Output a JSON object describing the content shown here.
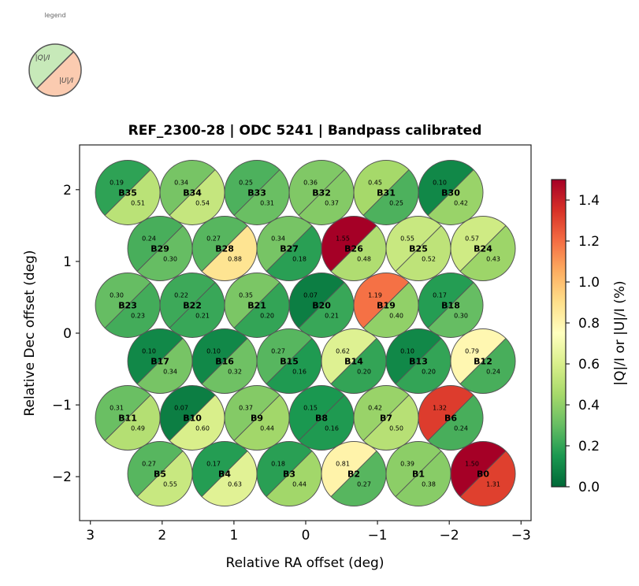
{
  "chart_data": {
    "type": "heatmap",
    "title": "REF_2300-28  |  ODC 5241  |  Bandpass calibrated",
    "xlabel": "Relative RA offset (deg)",
    "ylabel": "Relative Dec offset (deg)",
    "xlim": [
      3.15,
      -3.15
    ],
    "ylim": [
      -2.62,
      2.62
    ],
    "x_ticks": [
      3,
      2,
      1,
      0,
      -1,
      -2,
      -3
    ],
    "x_tick_labels": [
      "3",
      "2",
      "1",
      "0",
      "−1",
      "−2",
      "−3"
    ],
    "y_ticks": [
      2,
      1,
      0,
      -1,
      -2
    ],
    "y_tick_labels": [
      "2",
      "1",
      "0",
      "−1",
      "−2"
    ],
    "grid": false,
    "colorbar": {
      "label": "|Q|/I  or  |U|/I  (%)",
      "colormap": "RdYlGn_r",
      "vmin": 0.0,
      "vmax": 1.5,
      "ticks": [
        0.0,
        0.2,
        0.4,
        0.6,
        0.8,
        1.0,
        1.2,
        1.4
      ],
      "tick_labels": [
        "0.0",
        "0.2",
        "0.4",
        "0.6",
        "0.8",
        "1.0",
        "1.2",
        "1.4"
      ],
      "placement": "right"
    },
    "legend": {
      "title": "legend",
      "q_label": "|Q|/I",
      "u_label": "|U|/I",
      "q_color": "#c7e9b9",
      "u_color": "#fbcbb0",
      "placement": "top-left"
    },
    "beam_radius_deg": 0.45,
    "beams": [
      {
        "name": "B35",
        "x": 2.48,
        "y": 1.96,
        "q": 0.19,
        "u": 0.51
      },
      {
        "name": "B34",
        "x": 1.58,
        "y": 1.96,
        "q": 0.34,
        "u": 0.54
      },
      {
        "name": "B33",
        "x": 0.68,
        "y": 1.96,
        "q": 0.25,
        "u": 0.31
      },
      {
        "name": "B32",
        "x": -0.22,
        "y": 1.96,
        "q": 0.36,
        "u": 0.37
      },
      {
        "name": "B31",
        "x": -1.12,
        "y": 1.96,
        "q": 0.45,
        "u": 0.25
      },
      {
        "name": "B30",
        "x": -2.02,
        "y": 1.96,
        "q": 0.1,
        "u": 0.42
      },
      {
        "name": "B29",
        "x": 2.03,
        "y": 1.18,
        "q": 0.24,
        "u": 0.3
      },
      {
        "name": "B28",
        "x": 1.13,
        "y": 1.18,
        "q": 0.27,
        "u": 0.88
      },
      {
        "name": "B27",
        "x": 0.23,
        "y": 1.18,
        "q": 0.34,
        "u": 0.18
      },
      {
        "name": "B26",
        "x": -0.67,
        "y": 1.18,
        "q": 1.55,
        "u": 0.48
      },
      {
        "name": "B25",
        "x": -1.57,
        "y": 1.18,
        "q": 0.55,
        "u": 0.52
      },
      {
        "name": "B24",
        "x": -2.47,
        "y": 1.18,
        "q": 0.57,
        "u": 0.43
      },
      {
        "name": "B23",
        "x": 2.48,
        "y": 0.39,
        "q": 0.3,
        "u": 0.23
      },
      {
        "name": "B22",
        "x": 1.58,
        "y": 0.39,
        "q": 0.22,
        "u": 0.21
      },
      {
        "name": "B21",
        "x": 0.68,
        "y": 0.39,
        "q": 0.35,
        "u": 0.2
      },
      {
        "name": "B20",
        "x": -0.22,
        "y": 0.39,
        "q": 0.07,
        "u": 0.21
      },
      {
        "name": "B19",
        "x": -1.12,
        "y": 0.39,
        "q": 1.19,
        "u": 0.4
      },
      {
        "name": "B18",
        "x": -2.02,
        "y": 0.39,
        "q": 0.17,
        "u": 0.3
      },
      {
        "name": "B17",
        "x": 2.03,
        "y": -0.39,
        "q": 0.1,
        "u": 0.34
      },
      {
        "name": "B16",
        "x": 1.13,
        "y": -0.39,
        "q": 0.1,
        "u": 0.32
      },
      {
        "name": "B15",
        "x": 0.23,
        "y": -0.39,
        "q": 0.27,
        "u": 0.16
      },
      {
        "name": "B14",
        "x": -0.67,
        "y": -0.39,
        "q": 0.62,
        "u": 0.2
      },
      {
        "name": "B13",
        "x": -1.57,
        "y": -0.39,
        "q": 0.1,
        "u": 0.2
      },
      {
        "name": "B12",
        "x": -2.47,
        "y": -0.39,
        "q": 0.79,
        "u": 0.24
      },
      {
        "name": "B11",
        "x": 2.48,
        "y": -1.18,
        "q": 0.31,
        "u": 0.49
      },
      {
        "name": "B10",
        "x": 1.58,
        "y": -1.18,
        "q": 0.07,
        "u": 0.6
      },
      {
        "name": "B9",
        "x": 0.68,
        "y": -1.18,
        "q": 0.37,
        "u": 0.44
      },
      {
        "name": "B8",
        "x": -0.22,
        "y": -1.18,
        "q": 0.15,
        "u": 0.16
      },
      {
        "name": "B7",
        "x": -1.12,
        "y": -1.18,
        "q": 0.42,
        "u": 0.5
      },
      {
        "name": "B6",
        "x": -2.02,
        "y": -1.18,
        "q": 1.32,
        "u": 0.24
      },
      {
        "name": "B5",
        "x": 2.03,
        "y": -1.96,
        "q": 0.27,
        "u": 0.55
      },
      {
        "name": "B4",
        "x": 1.13,
        "y": -1.96,
        "q": 0.17,
        "u": 0.63
      },
      {
        "name": "B3",
        "x": 0.23,
        "y": -1.96,
        "q": 0.18,
        "u": 0.44
      },
      {
        "name": "B2",
        "x": -0.67,
        "y": -1.96,
        "q": 0.81,
        "u": 0.27
      },
      {
        "name": "B1",
        "x": -1.57,
        "y": -1.96,
        "q": 0.39,
        "u": 0.38
      },
      {
        "name": "B0",
        "x": -2.47,
        "y": -1.96,
        "q": 1.5,
        "u": 1.31
      }
    ]
  }
}
